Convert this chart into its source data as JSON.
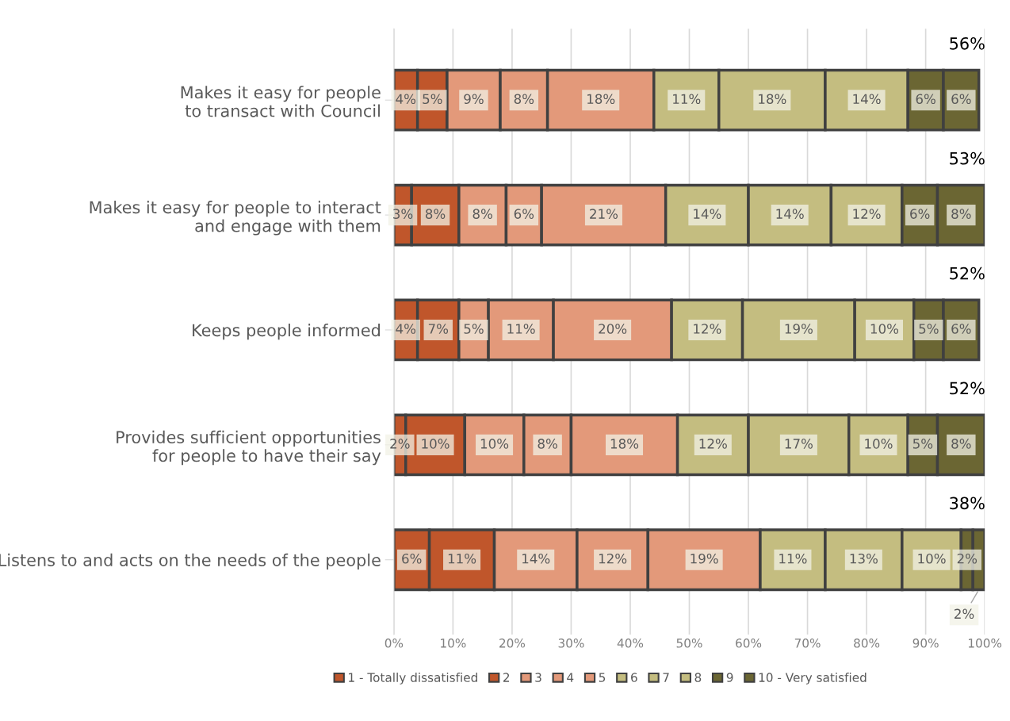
{
  "chart_data": {
    "type": "bar",
    "orientation": "horizontal",
    "stacked": true,
    "categories": [
      "Makes it easy for people\nto transact with Council",
      "Makes it easy for people to interact\nand engage with them",
      "Keeps people informed",
      "Provides sufficient opportunities\nfor people to have their say",
      "Listens to and acts on the needs of the people"
    ],
    "series": [
      {
        "name": "1 - Totally dissatisfied",
        "color": "#c0562b",
        "values": [
          4,
          3,
          4,
          2,
          6
        ],
        "value_labels": [
          "4%",
          "3%",
          "4%",
          "2%",
          "6%"
        ]
      },
      {
        "name": "2",
        "color": "#c0562b",
        "values": [
          5,
          8,
          7,
          10,
          11
        ],
        "value_labels": [
          "5%",
          "8%",
          "7%",
          "10%",
          "11%"
        ]
      },
      {
        "name": "3",
        "color": "#e3997a",
        "values": [
          9,
          8,
          5,
          10,
          14
        ],
        "value_labels": [
          "9%",
          "8%",
          "5%",
          "10%",
          "14%"
        ]
      },
      {
        "name": "4",
        "color": "#e3997a",
        "values": [
          8,
          6,
          11,
          8,
          12
        ],
        "value_labels": [
          "8%",
          "6%",
          "11%",
          "8%",
          "12%"
        ]
      },
      {
        "name": "5",
        "color": "#e3997a",
        "values": [
          18,
          21,
          20,
          18,
          19
        ],
        "value_labels": [
          "18%",
          "21%",
          "20%",
          "18%",
          "19%"
        ]
      },
      {
        "name": "6",
        "color": "#c4bd80",
        "values": [
          11,
          14,
          12,
          12,
          11
        ],
        "value_labels": [
          "11%",
          "14%",
          "12%",
          "12%",
          "11%"
        ]
      },
      {
        "name": "7",
        "color": "#c4bd80",
        "values": [
          18,
          14,
          19,
          17,
          13
        ],
        "value_labels": [
          "18%",
          "14%",
          "19%",
          "17%",
          "13%"
        ]
      },
      {
        "name": "8",
        "color": "#c4bd80",
        "values": [
          14,
          12,
          10,
          10,
          10
        ],
        "value_labels": [
          "14%",
          "12%",
          "10%",
          "10%",
          "10%"
        ]
      },
      {
        "name": "9",
        "color": "#6b6633",
        "values": [
          6,
          6,
          5,
          5,
          2
        ],
        "value_labels": [
          "6%",
          "6%",
          "5%",
          "5%",
          "2%"
        ]
      },
      {
        "name": "10 - Very satisfied",
        "color": "#6b6633",
        "values": [
          6,
          8,
          6,
          8,
          2
        ],
        "value_labels": [
          "6%",
          "8%",
          "6%",
          "8%",
          "2%"
        ]
      }
    ],
    "annotations": [
      "56%",
      "53%",
      "52%",
      "52%",
      "38%"
    ],
    "xlim": [
      0,
      100
    ],
    "xticks": [
      {
        "value": 0,
        "label": "0%"
      },
      {
        "value": 10,
        "label": "10%"
      },
      {
        "value": 20,
        "label": "20%"
      },
      {
        "value": 30,
        "label": "30%"
      },
      {
        "value": 40,
        "label": "40%"
      },
      {
        "value": 50,
        "label": "50%"
      },
      {
        "value": 60,
        "label": "60%"
      },
      {
        "value": 70,
        "label": "70%"
      },
      {
        "value": 80,
        "label": "80%"
      },
      {
        "value": 90,
        "label": "90%"
      },
      {
        "value": 100,
        "label": "100%"
      }
    ],
    "grid": "x",
    "legend": "bottom"
  }
}
